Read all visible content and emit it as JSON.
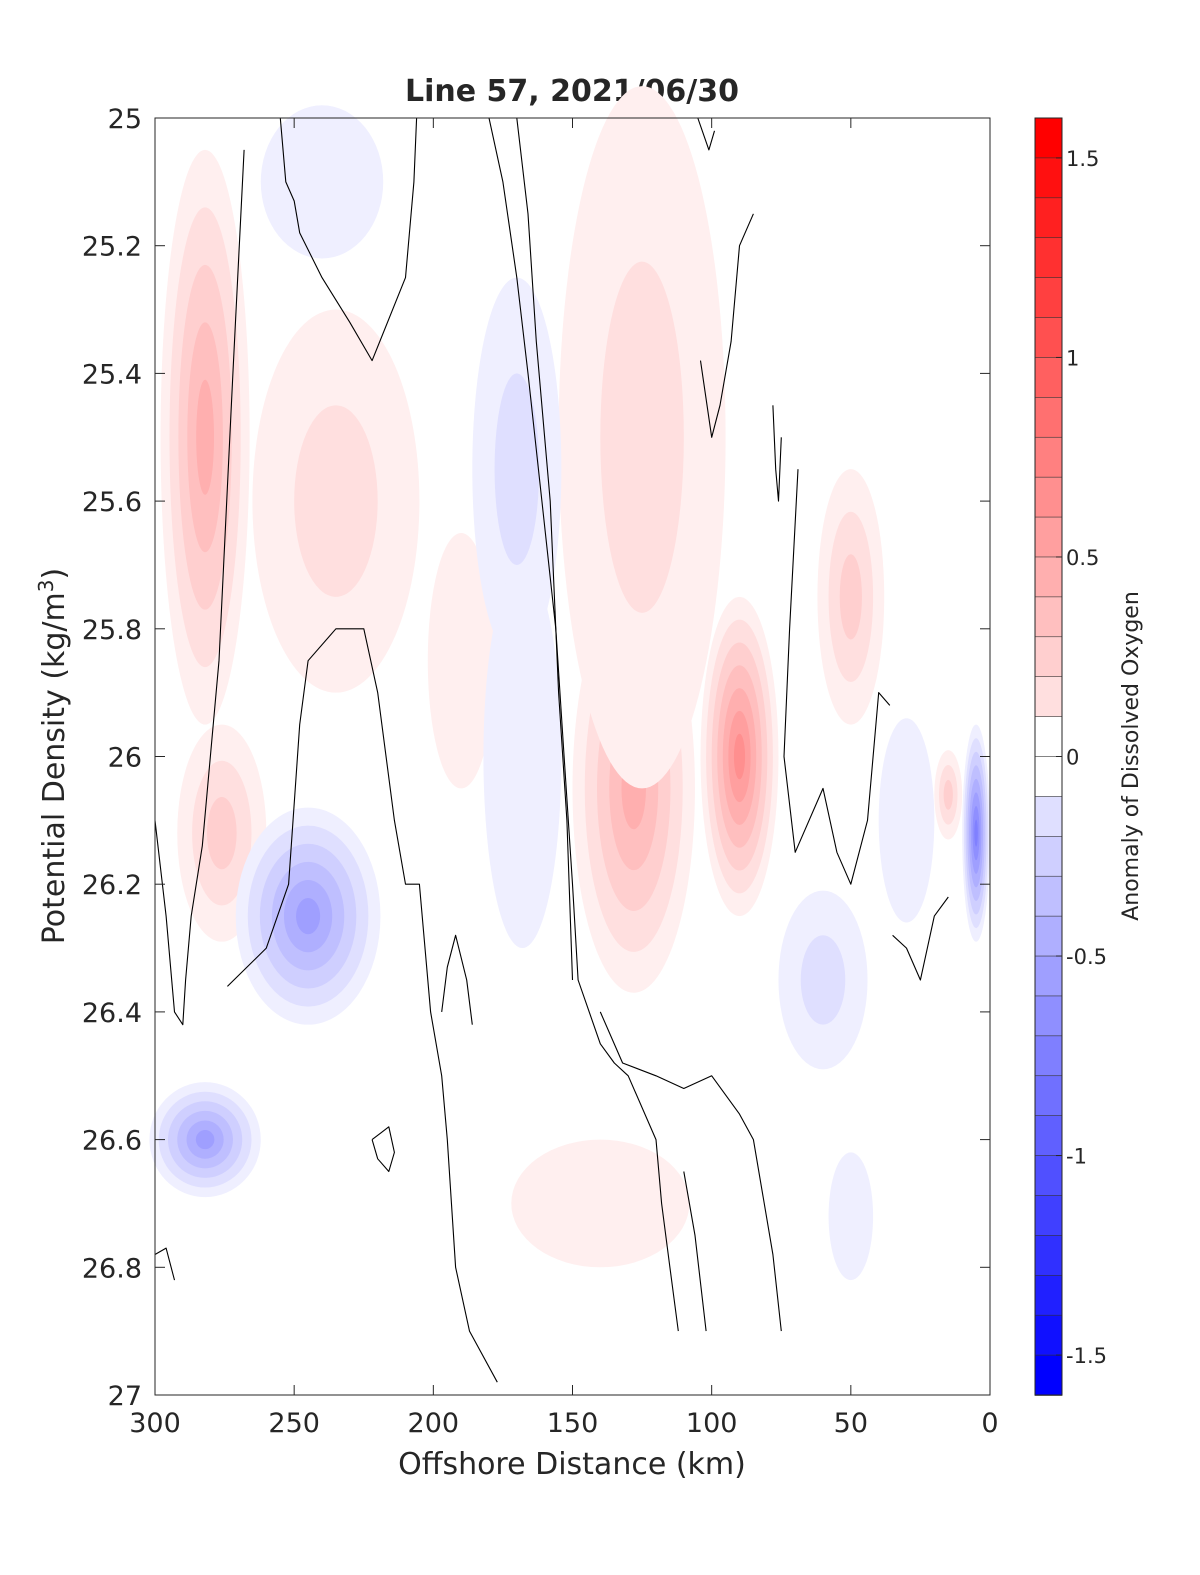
{
  "chart_data": {
    "type": "heatmap",
    "title": "Line 57, 2021/06/30",
    "xlabel": "Offshore Distance (km)",
    "ylabel_prefix": "Potential Density (kg/m",
    "ylabel_sup": "3",
    "ylabel_suffix": ")",
    "colorbar_label": "Anomaly of Dissolved Oxygen",
    "x_reversed": true,
    "y_reversed": true,
    "xlim": [
      0,
      300
    ],
    "ylim": [
      25,
      27
    ],
    "clim": [
      -1.6,
      1.6
    ],
    "contour_level_step": 0.1,
    "xticks": [
      300,
      250,
      200,
      150,
      100,
      50,
      0
    ],
    "xtick_labels": [
      "300",
      "250",
      "200",
      "150",
      "100",
      "50",
      "0"
    ],
    "yticks": [
      25,
      25.2,
      25.4,
      25.6,
      25.8,
      26,
      26.2,
      26.4,
      26.6,
      26.8,
      27
    ],
    "ytick_labels": [
      "25",
      "25.2",
      "25.4",
      "25.6",
      "25.8",
      "26",
      "26.2",
      "26.4",
      "26.6",
      "26.8",
      "27"
    ],
    "cbar_ticks": [
      1.5,
      1,
      0.5,
      0,
      -0.5,
      -1,
      -1.5
    ],
    "cbar_tick_labels": [
      "1.5",
      "1",
      "0.5",
      "0",
      "-0.5",
      "-1",
      "-1.5"
    ],
    "colormap": {
      "negative": "#0000ff",
      "zero": "#ffffff",
      "positive": "#ff0000"
    },
    "anomaly_features": [
      {
        "kind": "positive",
        "x": 282,
        "y": 25.5,
        "rx": 16,
        "ry": 0.45,
        "amp": 0.45
      },
      {
        "kind": "positive",
        "x": 276,
        "y": 26.12,
        "rx": 16,
        "ry": 0.17,
        "amp": 0.35
      },
      {
        "kind": "positive",
        "x": 235,
        "y": 25.6,
        "rx": 30,
        "ry": 0.3,
        "amp": 0.18
      },
      {
        "kind": "positive",
        "x": 190,
        "y": 25.85,
        "rx": 12,
        "ry": 0.2,
        "amp": 0.12
      },
      {
        "kind": "positive",
        "x": 128,
        "y": 26.05,
        "rx": 22,
        "ry": 0.32,
        "amp": 0.5
      },
      {
        "kind": "positive",
        "x": 90,
        "y": 26.0,
        "rx": 14,
        "ry": 0.25,
        "amp": 0.65
      },
      {
        "kind": "positive",
        "x": 125,
        "y": 25.5,
        "rx": 30,
        "ry": 0.55,
        "amp": 0.18
      },
      {
        "kind": "positive",
        "x": 50,
        "y": 25.75,
        "rx": 12,
        "ry": 0.2,
        "amp": 0.35
      },
      {
        "kind": "positive",
        "x": 15,
        "y": 26.06,
        "rx": 5,
        "ry": 0.07,
        "amp": 0.35
      },
      {
        "kind": "positive",
        "x": 140,
        "y": 26.7,
        "rx": 32,
        "ry": 0.1,
        "amp": 0.12
      },
      {
        "kind": "negative",
        "x": 240,
        "y": 25.1,
        "rx": 22,
        "ry": 0.12,
        "amp": -0.15
      },
      {
        "kind": "negative",
        "x": 170,
        "y": 25.55,
        "rx": 16,
        "ry": 0.3,
        "amp": -0.18
      },
      {
        "kind": "negative",
        "x": 168,
        "y": 26.0,
        "rx": 14,
        "ry": 0.3,
        "amp": -0.1
      },
      {
        "kind": "negative",
        "x": 245,
        "y": 26.25,
        "rx": 26,
        "ry": 0.17,
        "amp": -0.6
      },
      {
        "kind": "negative",
        "x": 282,
        "y": 26.6,
        "rx": 20,
        "ry": 0.09,
        "amp": -0.55
      },
      {
        "kind": "negative",
        "x": 60,
        "y": 26.35,
        "rx": 16,
        "ry": 0.14,
        "amp": -0.18
      },
      {
        "kind": "negative",
        "x": 30,
        "y": 26.1,
        "rx": 10,
        "ry": 0.16,
        "amp": -0.1
      },
      {
        "kind": "negative",
        "x": 5,
        "y": 26.12,
        "rx": 5,
        "ry": 0.17,
        "amp": -0.8
      },
      {
        "kind": "negative",
        "x": 50,
        "y": 26.72,
        "rx": 8,
        "ry": 0.1,
        "amp": -0.1
      }
    ],
    "zero_contours": [
      {
        "id": "c1",
        "points": [
          [
            300,
            26.1
          ],
          [
            296,
            26.25
          ],
          [
            293,
            26.4
          ],
          [
            290,
            26.42
          ],
          [
            289,
            26.35
          ],
          [
            287,
            26.25
          ],
          [
            283,
            26.14
          ],
          [
            277,
            25.85
          ],
          [
            272,
            25.4
          ],
          [
            268,
            25.05
          ]
        ]
      },
      {
        "id": "c2",
        "points": [
          [
            255,
            25.0
          ],
          [
            253,
            25.1
          ],
          [
            250,
            25.13
          ],
          [
            248,
            25.18
          ],
          [
            240,
            25.25
          ],
          [
            230,
            25.32
          ],
          [
            222,
            25.38
          ],
          [
            210,
            25.25
          ],
          [
            207,
            25.1
          ],
          [
            206,
            25.0
          ]
        ]
      },
      {
        "id": "c3",
        "points": [
          [
            274,
            26.36
          ],
          [
            260,
            26.3
          ],
          [
            252,
            26.2
          ],
          [
            248,
            25.95
          ],
          [
            245,
            25.85
          ],
          [
            235,
            25.8
          ],
          [
            225,
            25.8
          ],
          [
            220,
            25.9
          ],
          [
            214,
            26.1
          ],
          [
            210,
            26.2
          ],
          [
            205,
            26.2
          ],
          [
            201,
            26.4
          ],
          [
            197,
            26.5
          ],
          [
            195,
            26.6
          ],
          [
            192,
            26.8
          ],
          [
            187,
            26.9
          ],
          [
            177,
            26.98
          ]
        ]
      },
      {
        "id": "c4",
        "points": [
          [
            180,
            25.0
          ],
          [
            175,
            25.1
          ],
          [
            170,
            25.25
          ],
          [
            166,
            25.4
          ],
          [
            161,
            25.6
          ],
          [
            156,
            25.8
          ],
          [
            153,
            26.0
          ],
          [
            150,
            26.2
          ],
          [
            148,
            26.35
          ],
          [
            140,
            26.45
          ],
          [
            135,
            26.48
          ],
          [
            130,
            26.5
          ],
          [
            120,
            26.6
          ],
          [
            118,
            26.7
          ],
          [
            115,
            26.8
          ],
          [
            112,
            26.9
          ]
        ]
      },
      {
        "id": "c5",
        "points": [
          [
            170,
            25.0
          ],
          [
            166,
            25.15
          ],
          [
            163,
            25.35
          ],
          [
            158,
            25.6
          ],
          [
            155,
            25.9
          ],
          [
            152,
            26.1
          ],
          [
            150,
            26.35
          ]
        ]
      },
      {
        "id": "c6",
        "points": [
          [
            140,
            26.4
          ],
          [
            132,
            26.48
          ],
          [
            120,
            26.5
          ],
          [
            110,
            26.52
          ],
          [
            100,
            26.5
          ],
          [
            90,
            26.56
          ],
          [
            85,
            26.6
          ],
          [
            78,
            26.78
          ],
          [
            75,
            26.9
          ]
        ]
      },
      {
        "id": "c7",
        "points": [
          [
            197,
            26.4
          ],
          [
            195,
            26.33
          ],
          [
            192,
            26.28
          ],
          [
            188,
            26.35
          ],
          [
            186,
            26.42
          ]
        ]
      },
      {
        "id": "c8",
        "points": [
          [
            104,
            25.38
          ],
          [
            100,
            25.5
          ],
          [
            97,
            25.45
          ],
          [
            93,
            25.35
          ],
          [
            90,
            25.2
          ],
          [
            85,
            25.15
          ]
        ]
      },
      {
        "id": "c9",
        "points": [
          [
            78,
            25.45
          ],
          [
            77,
            25.55
          ],
          [
            76,
            25.6
          ],
          [
            75,
            25.5
          ]
        ]
      },
      {
        "id": "c10",
        "points": [
          [
            69,
            25.55
          ],
          [
            72,
            25.8
          ],
          [
            74,
            26.0
          ],
          [
            70,
            26.15
          ],
          [
            60,
            26.05
          ],
          [
            55,
            26.15
          ],
          [
            50,
            26.2
          ],
          [
            44,
            26.1
          ],
          [
            40,
            25.9
          ],
          [
            36,
            25.92
          ]
        ]
      },
      {
        "id": "c11",
        "points": [
          [
            222,
            26.6
          ],
          [
            216,
            26.58
          ],
          [
            214,
            26.62
          ],
          [
            216,
            26.65
          ],
          [
            220,
            26.63
          ],
          [
            222,
            26.6
          ]
        ]
      },
      {
        "id": "c12",
        "points": [
          [
            35,
            26.28
          ],
          [
            30,
            26.3
          ],
          [
            25,
            26.35
          ],
          [
            20,
            26.25
          ],
          [
            15,
            26.22
          ]
        ]
      },
      {
        "id": "c13",
        "points": [
          [
            110,
            26.65
          ],
          [
            106,
            26.75
          ],
          [
            102,
            26.9
          ]
        ]
      },
      {
        "id": "c14",
        "points": [
          [
            105,
            25.0
          ],
          [
            101,
            25.05
          ],
          [
            99,
            25.02
          ]
        ]
      },
      {
        "id": "c15",
        "points": [
          [
            300,
            26.78
          ],
          [
            296,
            26.77
          ],
          [
            293,
            26.82
          ]
        ]
      }
    ]
  }
}
